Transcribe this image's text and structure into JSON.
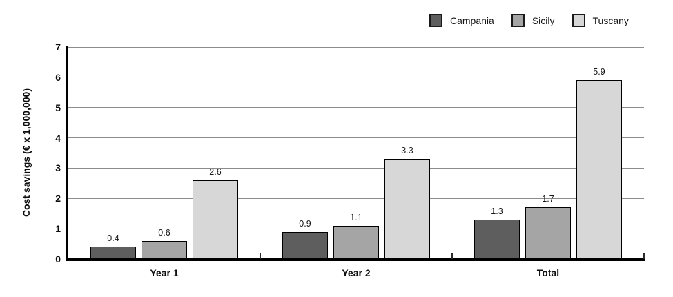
{
  "chart_data": {
    "type": "bar",
    "title": "",
    "categories": [
      "Year 1",
      "Year 2",
      "Total"
    ],
    "series": [
      {
        "name": "Campania",
        "color": "#5e5e5e",
        "values": [
          0.4,
          0.9,
          1.3
        ]
      },
      {
        "name": "Sicily",
        "color": "#a5a5a5",
        "values": [
          0.6,
          1.1,
          1.7
        ]
      },
      {
        "name": "Tuscany",
        "color": "#d7d7d7",
        "values": [
          2.6,
          3.3,
          5.9
        ]
      }
    ],
    "xlabel": "",
    "ylabel": "Cost savings (€ x 1,000,000)",
    "ylim": [
      0,
      7
    ],
    "yticks": [
      0,
      1,
      2,
      3,
      4,
      5,
      6,
      7
    ],
    "grid": true,
    "legend_position": "top-right",
    "bar_value_labels": true,
    "styles": {
      "bar_border": "#000000",
      "gridline_color": "#8c8c8c",
      "axis_color": "#000000",
      "text_color": "#111111",
      "background": "#ffffff"
    }
  }
}
